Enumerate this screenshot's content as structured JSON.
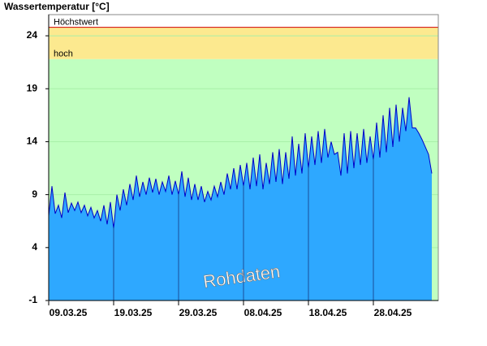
{
  "chart_data": {
    "type": "area",
    "title": "Wassertemperatur [°C]",
    "x": [
      0,
      0.5,
      1,
      1.5,
      2,
      2.5,
      3,
      3.5,
      4,
      4.5,
      5,
      5.5,
      6,
      6.5,
      7,
      7.5,
      8,
      8.5,
      9,
      9.5,
      10,
      10.5,
      11,
      11.5,
      12,
      12.5,
      13,
      13.5,
      14,
      14.5,
      15,
      15.5,
      16,
      16.5,
      17,
      17.5,
      18,
      18.5,
      19,
      19.5,
      20,
      20.5,
      21,
      21.5,
      22,
      22.5,
      23,
      23.5,
      24,
      24.5,
      25,
      25.5,
      26,
      26.5,
      27,
      27.5,
      28,
      28.5,
      29,
      29.5,
      30,
      30.5,
      31,
      31.5,
      32,
      32.5,
      33,
      33.5,
      34,
      34.5,
      35,
      35.5,
      36,
      36.5,
      37,
      37.5,
      38,
      38.5,
      39,
      39.5,
      40,
      40.5,
      41,
      41.5,
      42,
      42.5,
      43,
      43.5,
      44,
      44.5,
      45,
      45.5,
      46,
      46.5,
      47,
      47.5,
      48,
      48.5,
      49,
      49.5,
      50,
      50.5,
      51,
      51.5,
      52,
      52.5,
      53,
      53.5,
      54,
      54.5,
      55,
      55.5,
      56,
      56.5,
      57,
      57.5,
      58,
      58.5,
      59
    ],
    "series": [
      {
        "name": "Rohdaten",
        "color": "#2ea8ff",
        "line_color": "#0000c8",
        "values": [
          7.0,
          9.8,
          7.2,
          8.0,
          6.8,
          9.2,
          7.3,
          8.2,
          7.5,
          8.3,
          7.3,
          8.0,
          7.0,
          7.8,
          6.8,
          7.5,
          6.5,
          8.0,
          6.2,
          8.3,
          5.8,
          9.0,
          7.5,
          9.5,
          8.0,
          10.0,
          8.5,
          10.8,
          8.8,
          10.2,
          9.0,
          10.6,
          9.2,
          10.5,
          9.0,
          10.2,
          9.3,
          10.8,
          9.0,
          10.3,
          9.0,
          11.2,
          8.8,
          10.6,
          8.5,
          10.0,
          8.5,
          9.8,
          8.3,
          9.3,
          8.5,
          9.8,
          8.8,
          10.2,
          9.0,
          11.0,
          9.5,
          11.5,
          9.5,
          11.8,
          9.8,
          12.0,
          9.5,
          12.5,
          9.8,
          12.8,
          9.5,
          12.0,
          10.0,
          13.0,
          10.2,
          13.3,
          10.0,
          13.0,
          10.5,
          14.5,
          10.8,
          13.8,
          11.0,
          14.8,
          11.5,
          14.5,
          11.8,
          15.0,
          12.0,
          15.2,
          12.5,
          14.0,
          12.8,
          13.0,
          10.8,
          14.8,
          11.0,
          15.0,
          11.5,
          14.8,
          11.8,
          15.2,
          12.0,
          14.5,
          12.3,
          15.8,
          12.5,
          16.5,
          13.0,
          17.2,
          13.5,
          17.5,
          14.0,
          17.2,
          15.0,
          18.2,
          15.3,
          15.3,
          14.8,
          14.2,
          13.5,
          12.8,
          11.0
        ]
      }
    ],
    "xlim": [
      0,
      60
    ],
    "xticks": [
      {
        "value": 0,
        "label": "09.03.25"
      },
      {
        "value": 10,
        "label": "19.03.25"
      },
      {
        "value": 20,
        "label": "29.03.25"
      },
      {
        "value": 30,
        "label": "08.04.25"
      },
      {
        "value": 40,
        "label": "18.04.25"
      },
      {
        "value": 50,
        "label": "28.04.25"
      }
    ],
    "ylim": [
      -1,
      26
    ],
    "yticks": [
      -1,
      4,
      9,
      14,
      19,
      24
    ],
    "grid": true,
    "background_color": "#c0ffc0",
    "thresholds": [
      {
        "label": "hoch",
        "value": 21.8,
        "color": "#fce98f"
      },
      {
        "label": "Höchstwert",
        "value": 24.8,
        "color": "#d00000"
      }
    ]
  }
}
